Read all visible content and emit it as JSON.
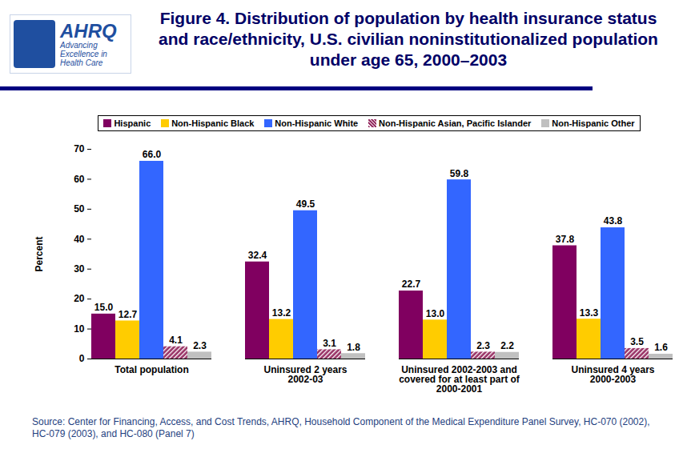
{
  "chart_data": {
    "type": "bar",
    "title": "Figure 4. Distribution of population by health insurance status and race/ethnicity, U.S. civilian noninstitutionalized population under age 65, 2000–2003",
    "annotations": [
      "AHRQ",
      "Advancing Excellence in Health Care"
    ],
    "source": "Source: Center for Financing, Access, and Cost Trends, AHRQ, Household Component of the Medical Expenditure Panel Survey, HC-070 (2002), HC-079 (2003), and HC-080 (Panel 7)",
    "y_label": "Percent",
    "categories": [
      "Total population",
      "Uninsured 2 years\n2002-03",
      "Uninsured 2002-2003 and\ncovered for at least part of\n2000-2001",
      "Uninsured 4 years\n2000-2003"
    ],
    "series": [
      {
        "name": "Hispanic",
        "color": "#800060",
        "values": [
          15.0,
          32.4,
          22.7,
          37.8
        ],
        "value_labels": [
          "15.0",
          "32.4",
          "22.7",
          "37.8"
        ]
      },
      {
        "name": "Non-Hispanic Black",
        "color": "#FFCC00",
        "values": [
          12.7,
          13.2,
          13.0,
          13.3
        ],
        "value_labels": [
          "12.7",
          "13.2",
          "13.0",
          "13.3"
        ]
      },
      {
        "name": "Non-Hispanic White",
        "color": "#3366FF",
        "values": [
          66.0,
          49.5,
          59.8,
          43.8
        ],
        "value_labels": [
          "66.0",
          "49.5",
          "59.8",
          "43.8"
        ]
      },
      {
        "name": "Non-Hispanic Asian, Pacific Islander",
        "color": "#993366",
        "values": [
          4.1,
          3.1,
          2.3,
          3.5
        ],
        "value_labels": [
          "4.1",
          "3.1",
          "2.3",
          "3.5"
        ]
      },
      {
        "name": "Non-Hispanic Other",
        "color": "#C0C0C0",
        "values": [
          2.3,
          1.8,
          2.2,
          1.6
        ],
        "value_labels": [
          "2.3",
          "1.8",
          "2.2",
          "1.6"
        ]
      }
    ],
    "ylim": [
      0,
      70
    ],
    "yticks": [
      0,
      10,
      20,
      30,
      40,
      50,
      60,
      70
    ],
    "data_labels": true,
    "legend": "top",
    "grid": false
  }
}
